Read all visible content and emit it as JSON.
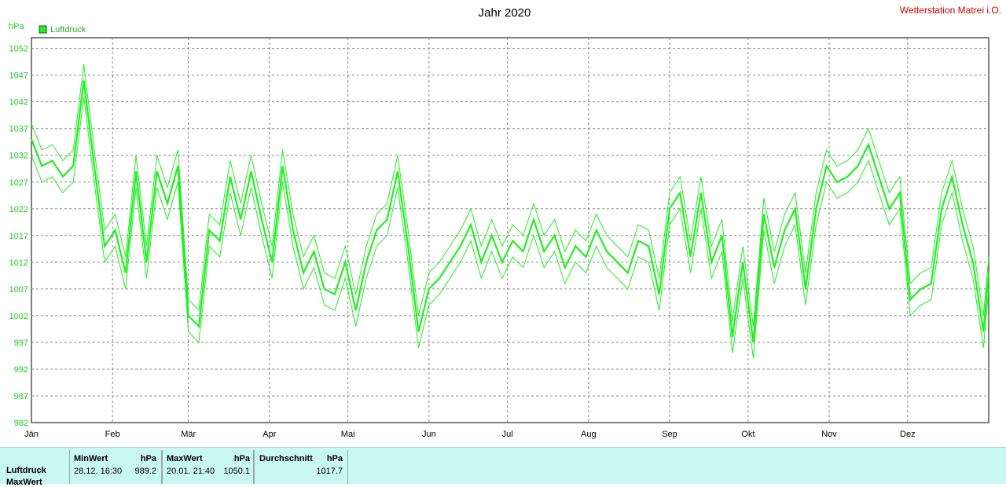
{
  "header": {
    "title": "Jahr 2020",
    "station": "Wetterstation Matrei i.O."
  },
  "colors": {
    "series": "#22ee22",
    "station": "#cc0000",
    "grid": "#888888",
    "panel": "#c9f7f4"
  },
  "chart_data": {
    "type": "line",
    "title": "Jahr 2020",
    "ylabel": "hPa",
    "ylim": [
      982,
      1054
    ],
    "yticks": [
      982,
      987,
      992,
      997,
      1002,
      1007,
      1012,
      1017,
      1022,
      1027,
      1032,
      1037,
      1042,
      1047,
      1052
    ],
    "xlim": [
      0,
      366
    ],
    "month_labels": [
      "Jän",
      "Feb",
      "Mär",
      "Apr",
      "Mai",
      "Jun",
      "Jul",
      "Aug",
      "Sep",
      "Okt",
      "Nov",
      "Dez"
    ],
    "month_starts": [
      0,
      31,
      60,
      91,
      121,
      152,
      182,
      213,
      244,
      274,
      305,
      335
    ],
    "legend": "Luftdruck",
    "grid": true,
    "series": [
      {
        "name": "Luftdruck",
        "x": [
          0,
          4,
          8,
          12,
          16,
          20,
          24,
          28,
          32,
          36,
          40,
          44,
          48,
          52,
          56,
          60,
          64,
          68,
          72,
          76,
          80,
          84,
          88,
          92,
          96,
          100,
          104,
          108,
          112,
          116,
          120,
          124,
          128,
          132,
          136,
          140,
          144,
          148,
          152,
          156,
          160,
          164,
          168,
          172,
          176,
          180,
          184,
          188,
          192,
          196,
          200,
          204,
          208,
          212,
          216,
          220,
          224,
          228,
          232,
          236,
          240,
          244,
          248,
          252,
          256,
          260,
          264,
          268,
          272,
          276,
          280,
          284,
          288,
          292,
          296,
          300,
          304,
          308,
          312,
          316,
          320,
          324,
          328,
          332,
          336,
          340,
          344,
          348,
          352,
          356,
          360,
          364,
          366
        ],
        "y": [
          1035,
          1030,
          1031,
          1028,
          1030,
          1046,
          1030,
          1015,
          1018,
          1010,
          1029,
          1012,
          1029,
          1023,
          1030,
          1002,
          1000,
          1018,
          1016,
          1028,
          1020,
          1029,
          1020,
          1012,
          1030,
          1018,
          1010,
          1014,
          1007,
          1006,
          1012,
          1003,
          1012,
          1018,
          1020,
          1029,
          1015,
          999,
          1007,
          1009,
          1012,
          1015,
          1019,
          1012,
          1017,
          1012,
          1016,
          1014,
          1020,
          1014,
          1017,
          1011,
          1015,
          1013,
          1018,
          1014,
          1012,
          1010,
          1016,
          1015,
          1006,
          1022,
          1025,
          1013,
          1025,
          1012,
          1017,
          998,
          1012,
          997,
          1021,
          1011,
          1018,
          1022,
          1007,
          1022,
          1030,
          1027,
          1028,
          1030,
          1034,
          1028,
          1022,
          1025,
          1005,
          1007,
          1008,
          1022,
          1028,
          1019,
          1012,
          999,
          1010
        ]
      }
    ],
    "envelope": {
      "max_offset": 3,
      "min_offset": 3
    }
  },
  "stats": {
    "rows": [
      "Luftdruck",
      "MaxWert"
    ],
    "min": {
      "head": "MinWert",
      "unit": "hPa",
      "time": "28.12.  16:30",
      "value": "989.2"
    },
    "max": {
      "head": "MaxWert",
      "unit": "hPa",
      "time": "20.01.  21:40",
      "value": "1050.1"
    },
    "avg": {
      "head": "Durchschnitt",
      "unit": "hPa",
      "value": "1017.7"
    }
  }
}
